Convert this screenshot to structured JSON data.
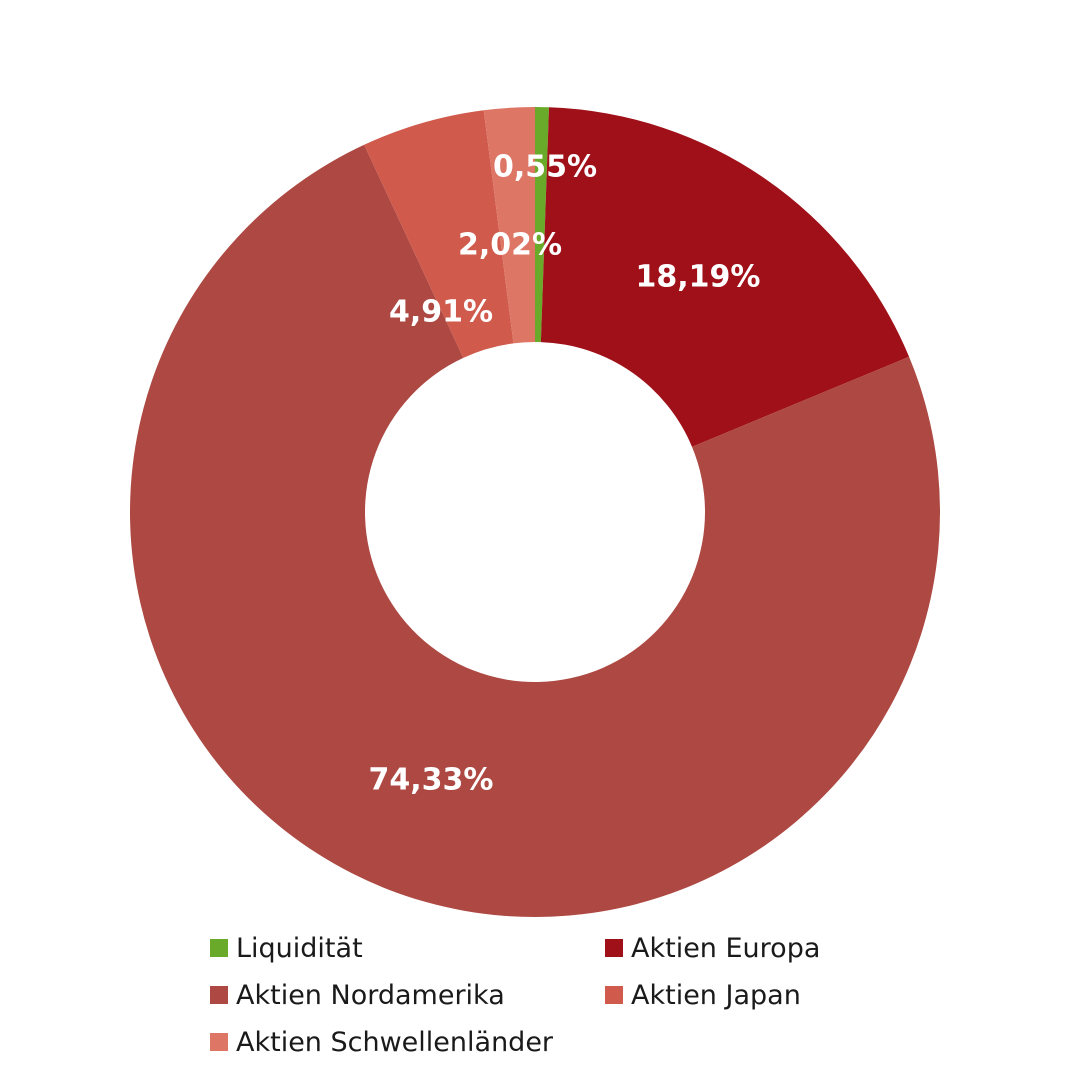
{
  "chart_data": {
    "type": "pie",
    "categories": [
      "Liquidität",
      "Aktien Europa",
      "Aktien Nordamerika",
      "Aktien Japan",
      "Aktien Schwellenländer"
    ],
    "values": [
      0.55,
      18.19,
      74.33,
      4.91,
      2.02
    ],
    "data_labels": [
      "0,55%",
      "18,19%",
      "74,33%",
      "4,91%",
      "2,02%"
    ],
    "colors": [
      "#6aaa2a",
      "#a01019",
      "#ad4842",
      "#d05a4c",
      "#de7666"
    ],
    "donut": true,
    "title": "",
    "legend_position": "bottom"
  },
  "legend": {
    "items": [
      {
        "label": "Liquidität",
        "color": "#6aaa2a"
      },
      {
        "label": "Aktien Europa",
        "color": "#a01019"
      },
      {
        "label": "Aktien Nordamerika",
        "color": "#ad4842"
      },
      {
        "label": "Aktien Japan",
        "color": "#d05a4c"
      },
      {
        "label": "Aktien Schwellenländer",
        "color": "#de7666"
      }
    ]
  }
}
